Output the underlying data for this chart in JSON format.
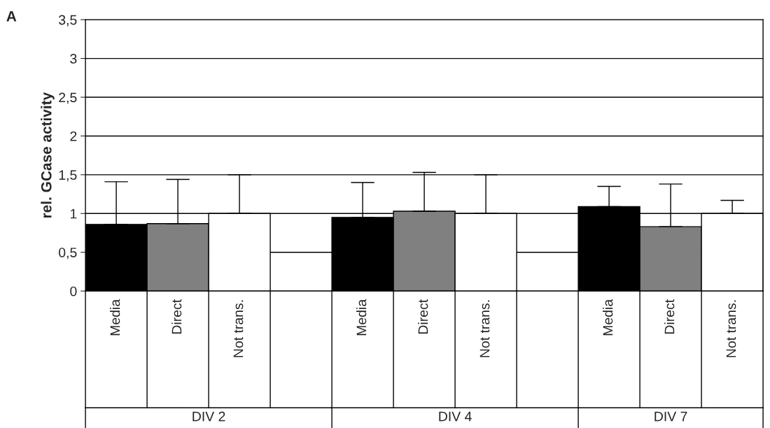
{
  "chart_data": {
    "type": "bar",
    "ylabel": "rel. GCase activity",
    "categories": [
      "Media",
      "Direct",
      "Not trans.",
      null,
      "Media",
      "Direct",
      "Not trans.",
      null,
      "Media",
      "Direct",
      "Not trans."
    ],
    "values": [
      0.86,
      0.87,
      1.0,
      null,
      0.95,
      1.03,
      1.0,
      null,
      1.09,
      0.83,
      1.0
    ],
    "colors": [
      "#000000",
      "#808080",
      "#ffffff",
      "#ffffff",
      "#000000",
      "#808080",
      "#ffffff",
      "#ffffff",
      "#000000",
      "#808080",
      "#ffffff"
    ],
    "errors": [
      [
        0.86,
        1.41
      ],
      [
        0.87,
        1.44
      ],
      [
        1.0,
        1.5
      ],
      null,
      [
        0.95,
        1.4
      ],
      [
        1.03,
        1.53
      ],
      [
        1.0,
        1.5
      ],
      null,
      [
        1.09,
        1.35
      ],
      [
        0.83,
        1.38
      ],
      [
        1.0,
        1.17
      ]
    ],
    "ylim": [
      0,
      3.5
    ],
    "yticks": [
      0,
      {
        "value": 0.5,
        "label": "0,5"
      },
      1,
      {
        "value": 1.5,
        "label": "1,5"
      },
      2,
      {
        "value": 2.5,
        "label": "2,5"
      },
      3,
      {
        "value": 3.5,
        "label": "3,5"
      }
    ],
    "grid": "y",
    "annotations": [
      "A",
      "DIV 2",
      "DIV 4",
      "DIV 7"
    ]
  }
}
